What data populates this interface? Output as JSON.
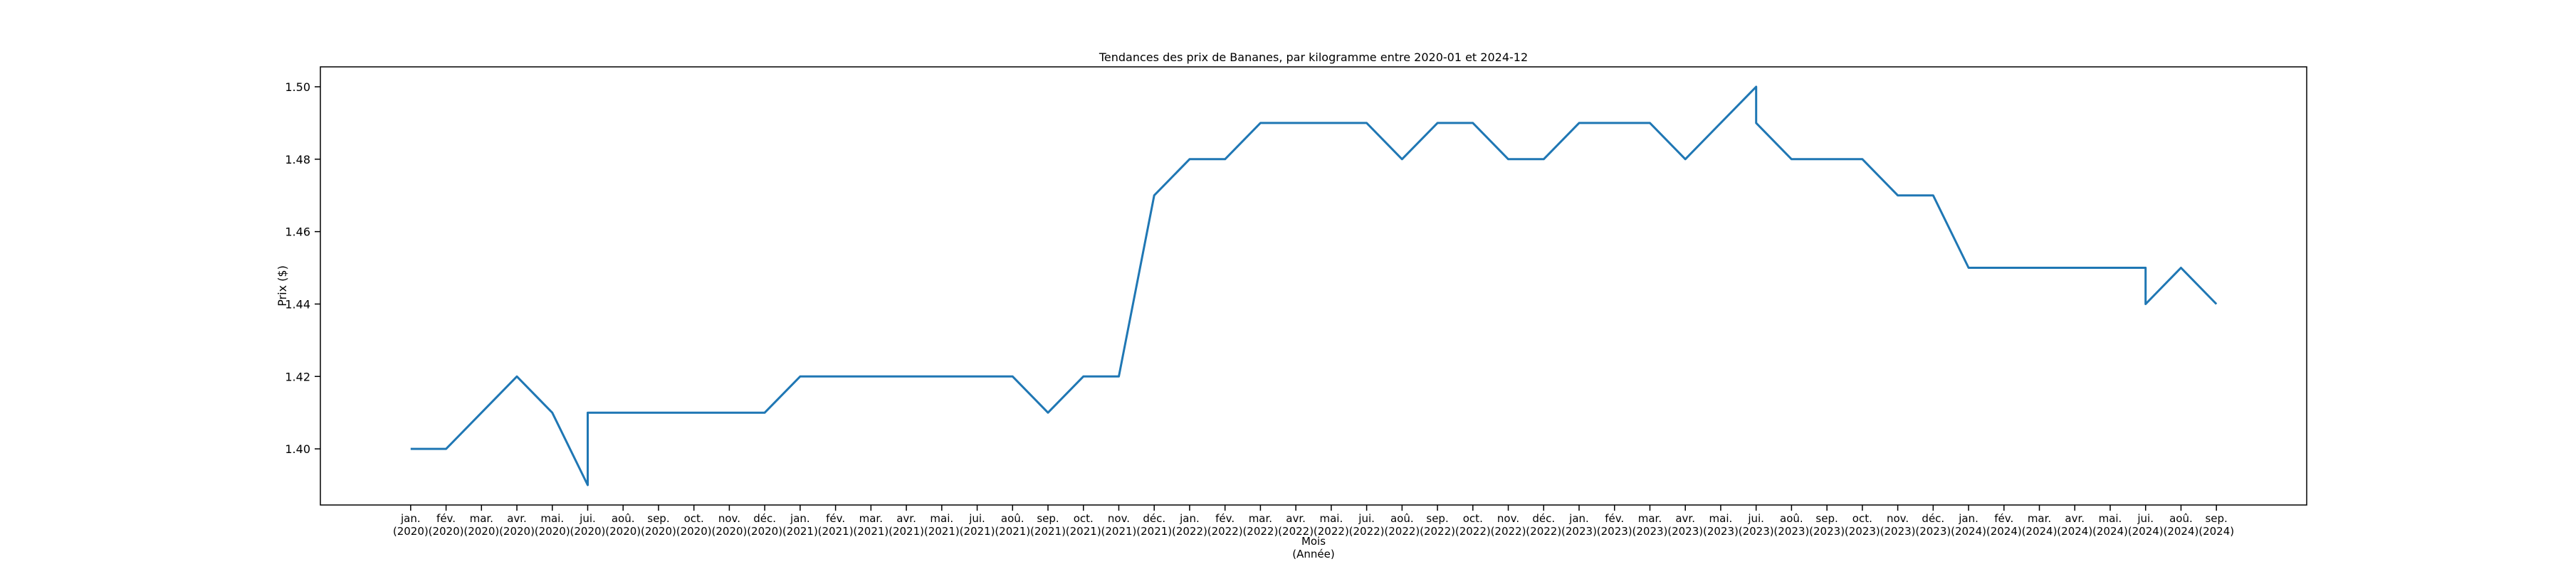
{
  "chart_data": {
    "type": "line",
    "title": "Tendances des prix de Bananes, par kilogramme entre 2020-01 et 2024-12",
    "xlabel": "Mois\n(Année)",
    "ylabel": "Prix ($)",
    "categories": [
      "jan.\n(2020)",
      "fév.\n(2020)",
      "mar.\n(2020)",
      "avr.\n(2020)",
      "mai.\n(2020)",
      "jui.\n(2020)",
      "jui.\n(2020)",
      "aoû.\n(2020)",
      "sep.\n(2020)",
      "oct.\n(2020)",
      "nov.\n(2020)",
      "déc.\n(2020)",
      "jan.\n(2021)",
      "fév.\n(2021)",
      "mar.\n(2021)",
      "avr.\n(2021)",
      "mai.\n(2021)",
      "jui.\n(2021)",
      "jui.\n(2021)",
      "aoû.\n(2021)",
      "sep.\n(2021)",
      "oct.\n(2021)",
      "nov.\n(2021)",
      "déc.\n(2021)",
      "jan.\n(2022)",
      "fév.\n(2022)",
      "mar.\n(2022)",
      "avr.\n(2022)",
      "mai.\n(2022)",
      "jui.\n(2022)",
      "jui.\n(2022)",
      "aoû.\n(2022)",
      "sep.\n(2022)",
      "oct.\n(2022)",
      "nov.\n(2022)",
      "déc.\n(2022)",
      "jan.\n(2023)",
      "fév.\n(2023)",
      "mar.\n(2023)",
      "avr.\n(2023)",
      "mai.\n(2023)",
      "jui.\n(2023)",
      "jui.\n(2023)",
      "aoû.\n(2023)",
      "sep.\n(2023)",
      "oct.\n(2023)",
      "nov.\n(2023)",
      "déc.\n(2023)",
      "jan.\n(2024)",
      "fév.\n(2024)",
      "mar.\n(2024)",
      "avr.\n(2024)",
      "mai.\n(2024)",
      "jui.\n(2024)",
      "jui.\n(2024)",
      "aoû.\n(2024)",
      "sep.\n(2024)"
    ],
    "values": [
      1.4,
      1.4,
      1.41,
      1.42,
      1.41,
      1.39,
      1.41,
      1.41,
      1.41,
      1.41,
      1.41,
      1.41,
      1.42,
      1.42,
      1.42,
      1.42,
      1.42,
      1.42,
      1.42,
      1.42,
      1.41,
      1.42,
      1.42,
      1.47,
      1.48,
      1.48,
      1.49,
      1.49,
      1.49,
      1.49,
      1.49,
      1.48,
      1.49,
      1.49,
      1.48,
      1.48,
      1.49,
      1.49,
      1.49,
      1.48,
      1.49,
      1.5,
      1.49,
      1.48,
      1.48,
      1.48,
      1.47,
      1.47,
      1.45,
      1.45,
      1.45,
      1.45,
      1.45,
      1.45,
      1.44,
      1.45,
      1.44
    ],
    "color": "#1f77b4",
    "ylim": [
      1.3845,
      1.5055
    ],
    "yticks": [
      {
        "value": 1.4,
        "label": "1.40"
      },
      {
        "value": 1.42,
        "label": "1.42"
      },
      {
        "value": 1.44,
        "label": "1.44"
      },
      {
        "value": 1.46,
        "label": "1.46"
      },
      {
        "value": 1.48,
        "label": "1.48"
      },
      {
        "value": 1.5,
        "label": "1.50"
      }
    ]
  }
}
